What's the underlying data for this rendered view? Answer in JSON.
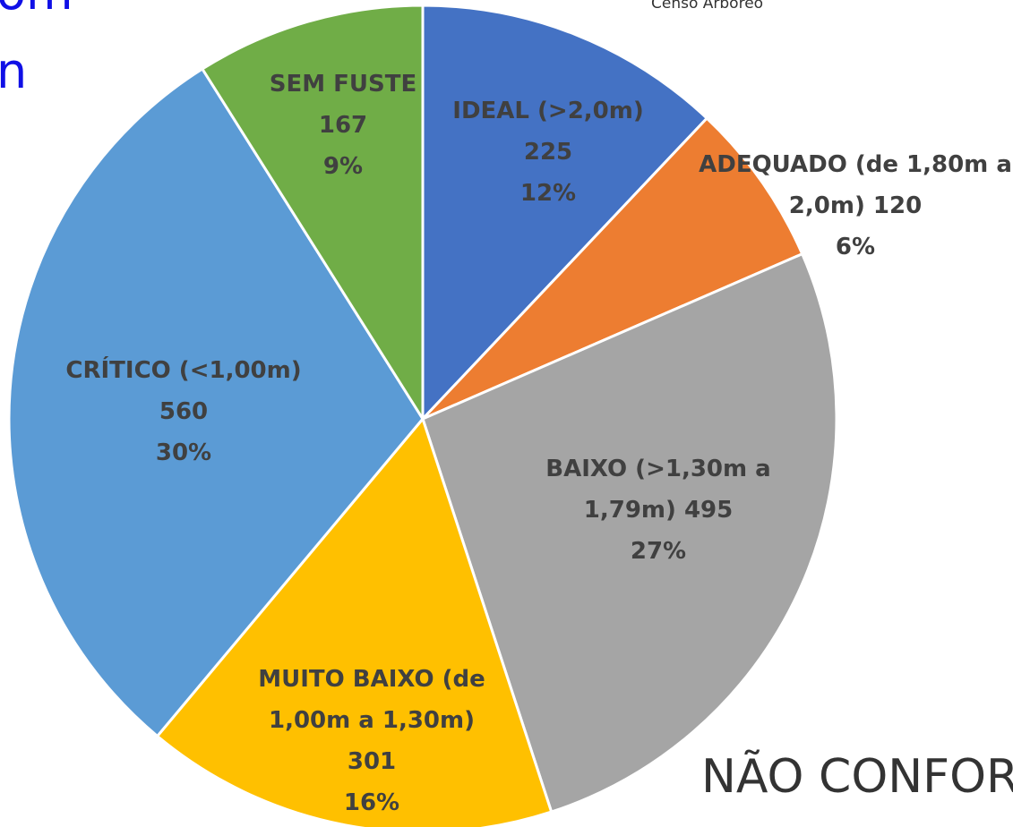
{
  "chart_data": {
    "type": "pie",
    "categories": [
      "IDEAL (>2,0m)",
      "ADEQUADO (de 1,80m a 2,0m)",
      "BAIXO (>1,30m a 1,79m)",
      "MUITO BAIXO (de 1,00m a 1,30m)",
      "CRÍTICO (<1,00m)",
      "SEM FUSTE"
    ],
    "values": [
      225,
      120,
      495,
      301,
      560,
      167
    ],
    "percent_labels": [
      "12%",
      "6%",
      "27%",
      "16%",
      "30%",
      "9%"
    ],
    "colors": [
      "#4472c4",
      "#ed7d31",
      "#a5a5a5",
      "#ffc000",
      "#5b9bd5",
      "#70ad47"
    ]
  },
  "header": {
    "title_fragment_1": "om",
    "title_fragment_2": "n",
    "source": "Censo  Arbóreo"
  },
  "footer": {
    "text": "NÃO CONFOR"
  }
}
